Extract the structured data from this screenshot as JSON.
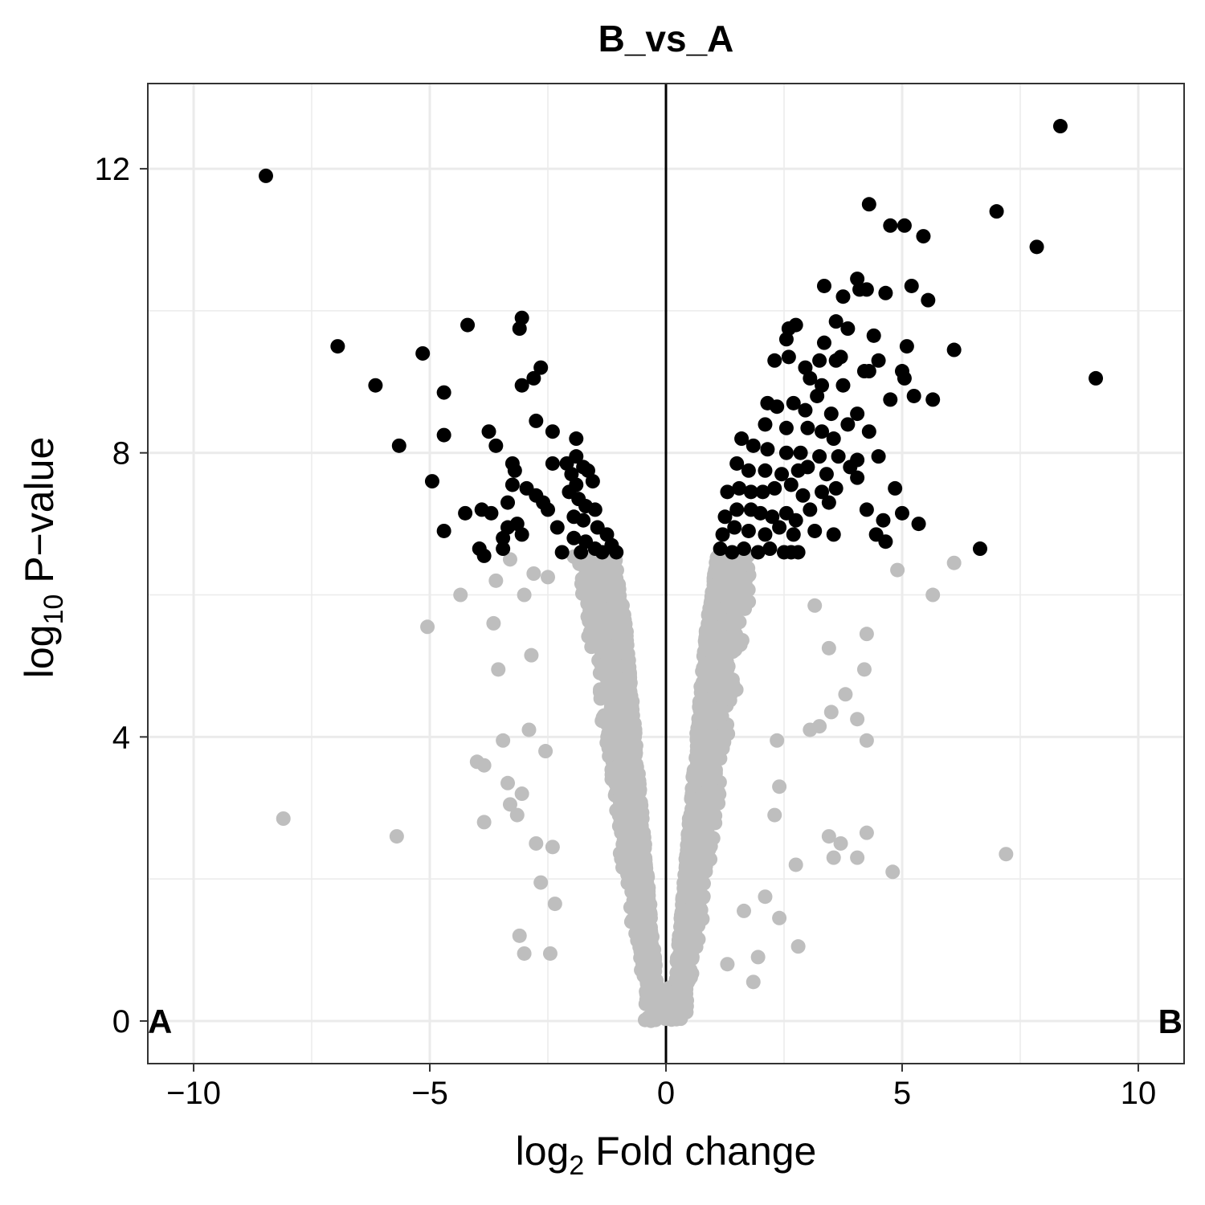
{
  "chart_data": {
    "type": "scatter",
    "title": "B_vs_A",
    "xlabel": {
      "prefix": "log",
      "sub": "2",
      "suffix": " Fold change"
    },
    "ylabel": {
      "prefix": "log",
      "sub": "10",
      "suffix": " P−value"
    },
    "xlim": [
      -10.97,
      10.97
    ],
    "ylim": [
      -0.6,
      13.2
    ],
    "x_ticks": [
      -10,
      -5,
      0,
      5,
      10
    ],
    "x_tick_labels": [
      "−10",
      "−5",
      "0",
      "5",
      "10"
    ],
    "y_ticks": [
      0,
      4,
      8,
      12
    ],
    "y_tick_labels": [
      "0",
      "4",
      "8",
      "12"
    ],
    "grid": true,
    "legend": "none",
    "vline_x": 0,
    "corner_labels": {
      "left": "A",
      "right": "B"
    },
    "colors": {
      "significant": "#000000",
      "not_significant": "#bebebe",
      "grid": "#ebebeb",
      "frame": "#333333"
    },
    "significant_points": [
      [
        -8.47,
        11.9
      ],
      [
        -6.95,
        9.5
      ],
      [
        -6.15,
        8.95
      ],
      [
        -5.15,
        9.4
      ],
      [
        -4.7,
        8.85
      ],
      [
        -4.7,
        8.25
      ],
      [
        -5.65,
        8.1
      ],
      [
        -4.2,
        9.8
      ],
      [
        -3.05,
        9.9
      ],
      [
        -3.1,
        9.75
      ],
      [
        -2.65,
        9.2
      ],
      [
        -2.8,
        9.05
      ],
      [
        -3.05,
        8.95
      ],
      [
        -2.75,
        8.45
      ],
      [
        -2.4,
        8.3
      ],
      [
        -3.75,
        8.3
      ],
      [
        -3.6,
        8.1
      ],
      [
        -4.95,
        7.6
      ],
      [
        -3.25,
        7.85
      ],
      [
        -3.2,
        7.75
      ],
      [
        -3.25,
        7.55
      ],
      [
        -2.95,
        7.5
      ],
      [
        -2.75,
        7.4
      ],
      [
        -3.35,
        7.3
      ],
      [
        -3.9,
        7.2
      ],
      [
        -4.25,
        7.15
      ],
      [
        -3.7,
        7.15
      ],
      [
        -3.15,
        7.0
      ],
      [
        -3.05,
        6.85
      ],
      [
        -3.35,
        6.95
      ],
      [
        -3.45,
        6.8
      ],
      [
        -4.7,
        6.9
      ],
      [
        -3.95,
        6.65
      ],
      [
        -3.85,
        6.55
      ],
      [
        -3.45,
        6.65
      ],
      [
        -2.4,
        7.85
      ],
      [
        -2.3,
        6.95
      ],
      [
        -2.6,
        7.3
      ],
      [
        -2.5,
        7.2
      ],
      [
        -1.9,
        8.2
      ],
      [
        -1.9,
        7.95
      ],
      [
        -2.1,
        7.85
      ],
      [
        -2.0,
        7.7
      ],
      [
        -1.75,
        7.8
      ],
      [
        -1.65,
        7.75
      ],
      [
        -1.9,
        7.55
      ],
      [
        -1.55,
        7.6
      ],
      [
        -2.05,
        7.45
      ],
      [
        -1.85,
        7.35
      ],
      [
        -1.7,
        7.25
      ],
      [
        -1.5,
        7.2
      ],
      [
        -1.95,
        7.1
      ],
      [
        -1.75,
        7.05
      ],
      [
        -1.45,
        6.95
      ],
      [
        -1.25,
        6.85
      ],
      [
        -1.15,
        6.7
      ],
      [
        -1.95,
        6.8
      ],
      [
        -1.7,
        6.75
      ],
      [
        -2.2,
        6.6
      ],
      [
        -1.5,
        6.65
      ],
      [
        -1.05,
        6.6
      ],
      [
        -1.35,
        6.6
      ],
      [
        -1.8,
        6.6
      ],
      [
        8.35,
        12.6
      ],
      [
        7.0,
        11.4
      ],
      [
        7.85,
        10.9
      ],
      [
        9.1,
        9.05
      ],
      [
        4.3,
        11.5
      ],
      [
        4.75,
        11.2
      ],
      [
        5.05,
        11.2
      ],
      [
        5.45,
        11.05
      ],
      [
        4.05,
        10.45
      ],
      [
        4.1,
        10.3
      ],
      [
        4.25,
        10.3
      ],
      [
        4.65,
        10.25
      ],
      [
        5.2,
        10.35
      ],
      [
        5.55,
        10.15
      ],
      [
        3.35,
        10.35
      ],
      [
        3.75,
        10.2
      ],
      [
        3.6,
        9.85
      ],
      [
        3.85,
        9.75
      ],
      [
        4.4,
        9.65
      ],
      [
        2.75,
        9.8
      ],
      [
        2.6,
        9.75
      ],
      [
        2.55,
        9.6
      ],
      [
        3.35,
        9.55
      ],
      [
        2.6,
        9.35
      ],
      [
        2.3,
        9.3
      ],
      [
        3.25,
        9.3
      ],
      [
        3.6,
        9.3
      ],
      [
        3.7,
        9.35
      ],
      [
        4.5,
        9.3
      ],
      [
        4.3,
        9.15
      ],
      [
        4.2,
        9.15
      ],
      [
        5.1,
        9.5
      ],
      [
        5.0,
        9.15
      ],
      [
        5.05,
        9.05
      ],
      [
        6.1,
        9.45
      ],
      [
        2.95,
        9.2
      ],
      [
        3.05,
        9.05
      ],
      [
        3.3,
        8.95
      ],
      [
        3.75,
        8.95
      ],
      [
        3.2,
        8.8
      ],
      [
        5.25,
        8.8
      ],
      [
        5.65,
        8.75
      ],
      [
        4.75,
        8.75
      ],
      [
        2.15,
        8.7
      ],
      [
        2.35,
        8.65
      ],
      [
        2.7,
        8.7
      ],
      [
        2.95,
        8.6
      ],
      [
        3.5,
        8.55
      ],
      [
        4.05,
        8.55
      ],
      [
        3.85,
        8.4
      ],
      [
        2.1,
        8.4
      ],
      [
        2.55,
        8.35
      ],
      [
        3.0,
        8.35
      ],
      [
        3.3,
        8.3
      ],
      [
        3.55,
        8.2
      ],
      [
        4.3,
        8.3
      ],
      [
        1.6,
        8.2
      ],
      [
        1.85,
        8.1
      ],
      [
        2.15,
        8.05
      ],
      [
        2.55,
        8.0
      ],
      [
        2.85,
        8.0
      ],
      [
        3.25,
        7.95
      ],
      [
        3.65,
        7.95
      ],
      [
        4.05,
        7.9
      ],
      [
        4.5,
        7.95
      ],
      [
        1.5,
        7.85
      ],
      [
        1.75,
        7.75
      ],
      [
        2.1,
        7.75
      ],
      [
        2.45,
        7.7
      ],
      [
        2.8,
        7.75
      ],
      [
        3.0,
        7.8
      ],
      [
        3.4,
        7.7
      ],
      [
        3.9,
        7.8
      ],
      [
        1.3,
        7.45
      ],
      [
        1.55,
        7.5
      ],
      [
        1.8,
        7.45
      ],
      [
        2.05,
        7.45
      ],
      [
        2.3,
        7.5
      ],
      [
        2.65,
        7.55
      ],
      [
        2.9,
        7.4
      ],
      [
        3.3,
        7.45
      ],
      [
        3.6,
        7.5
      ],
      [
        4.05,
        7.65
      ],
      [
        4.85,
        7.5
      ],
      [
        1.25,
        7.1
      ],
      [
        1.5,
        7.2
      ],
      [
        1.8,
        7.2
      ],
      [
        2.0,
        7.15
      ],
      [
        2.25,
        7.1
      ],
      [
        2.55,
        7.15
      ],
      [
        2.75,
        7.05
      ],
      [
        3.05,
        7.2
      ],
      [
        3.45,
        7.3
      ],
      [
        4.25,
        7.2
      ],
      [
        5.0,
        7.15
      ],
      [
        5.35,
        7.0
      ],
      [
        4.6,
        7.05
      ],
      [
        1.2,
        6.85
      ],
      [
        1.45,
        6.95
      ],
      [
        1.75,
        6.9
      ],
      [
        2.1,
        6.85
      ],
      [
        2.4,
        6.95
      ],
      [
        2.7,
        6.85
      ],
      [
        3.15,
        6.9
      ],
      [
        3.55,
        6.85
      ],
      [
        4.45,
        6.85
      ],
      [
        4.65,
        6.75
      ],
      [
        1.15,
        6.65
      ],
      [
        1.4,
        6.6
      ],
      [
        1.65,
        6.65
      ],
      [
        1.95,
        6.6
      ],
      [
        2.2,
        6.65
      ],
      [
        2.5,
        6.6
      ],
      [
        2.65,
        6.6
      ],
      [
        2.8,
        6.6
      ],
      [
        6.65,
        6.65
      ]
    ],
    "outlier_nonsignificant_points": [
      [
        -8.1,
        2.85
      ],
      [
        -5.7,
        2.6
      ],
      [
        -5.05,
        5.55
      ],
      [
        -4.35,
        6.0
      ],
      [
        -4.0,
        3.65
      ],
      [
        -3.85,
        3.6
      ],
      [
        -3.85,
        2.8
      ],
      [
        -3.65,
        5.6
      ],
      [
        -3.55,
        4.95
      ],
      [
        -3.45,
        3.95
      ],
      [
        -3.35,
        3.35
      ],
      [
        -3.3,
        3.05
      ],
      [
        -3.15,
        2.9
      ],
      [
        -3.1,
        1.2
      ],
      [
        -3.0,
        0.95
      ],
      [
        -3.05,
        3.2
      ],
      [
        -2.9,
        4.1
      ],
      [
        -2.85,
        5.15
      ],
      [
        -2.75,
        2.5
      ],
      [
        -2.65,
        1.95
      ],
      [
        -2.55,
        3.8
      ],
      [
        -2.45,
        0.95
      ],
      [
        -2.4,
        2.45
      ],
      [
        -2.35,
        1.65
      ],
      [
        -3.3,
        6.5
      ],
      [
        -2.8,
        6.3
      ],
      [
        -2.5,
        6.25
      ],
      [
        -3.6,
        6.2
      ],
      [
        -3.0,
        6.0
      ],
      [
        4.8,
        2.1
      ],
      [
        4.9,
        6.35
      ],
      [
        5.65,
        6.0
      ],
      [
        6.1,
        6.45
      ],
      [
        7.2,
        2.35
      ],
      [
        4.25,
        5.45
      ],
      [
        4.2,
        4.95
      ],
      [
        4.25,
        3.95
      ],
      [
        4.05,
        4.25
      ],
      [
        4.05,
        2.3
      ],
      [
        4.25,
        2.65
      ],
      [
        3.8,
        4.6
      ],
      [
        3.5,
        4.35
      ],
      [
        3.45,
        2.6
      ],
      [
        3.25,
        4.15
      ],
      [
        3.05,
        4.1
      ],
      [
        2.8,
        1.05
      ],
      [
        2.75,
        2.2
      ],
      [
        2.4,
        1.45
      ],
      [
        2.35,
        3.95
      ],
      [
        2.4,
        3.3
      ],
      [
        2.3,
        2.9
      ],
      [
        2.1,
        1.75
      ],
      [
        1.85,
        0.55
      ],
      [
        1.95,
        0.9
      ],
      [
        1.65,
        1.55
      ],
      [
        1.3,
        0.8
      ],
      [
        3.55,
        2.3
      ],
      [
        3.7,
        2.5
      ],
      [
        3.15,
        5.85
      ],
      [
        3.45,
        5.25
      ]
    ],
    "core_distribution_note": ""
  }
}
